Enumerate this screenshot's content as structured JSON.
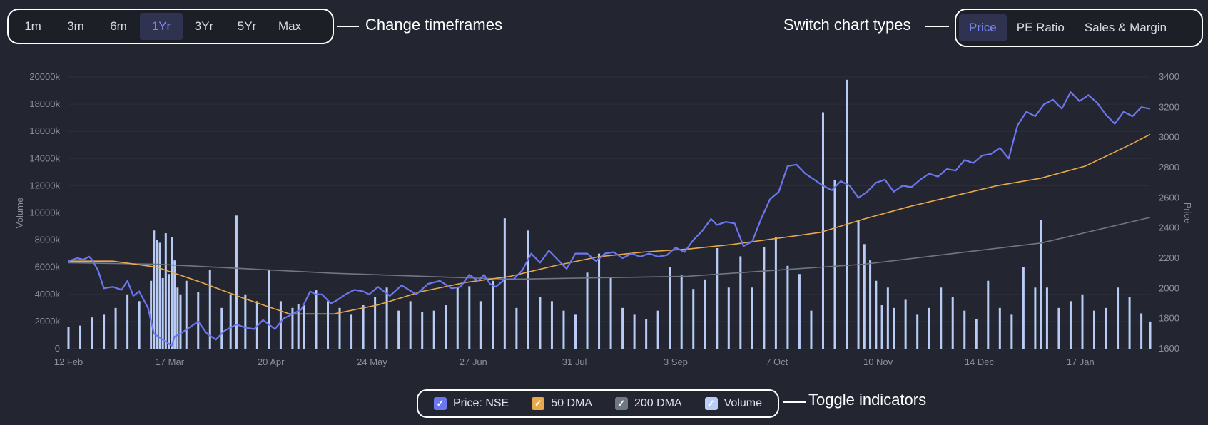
{
  "timeframes": {
    "buttons": [
      "1m",
      "3m",
      "6m",
      "1Yr",
      "3Yr",
      "5Yr",
      "Max"
    ],
    "active": "1Yr",
    "callout": "Change timeframes"
  },
  "chart_types": {
    "buttons": [
      "Price",
      "PE Ratio",
      "Sales & Margin"
    ],
    "active": "Price",
    "callout": "Switch chart types"
  },
  "legend": {
    "callout": "Toggle indicators",
    "items": [
      {
        "label": "Price: NSE",
        "color": "#6c76ee",
        "checked": true
      },
      {
        "label": "50 DMA",
        "color": "#e8a94a",
        "checked": true
      },
      {
        "label": "200 DMA",
        "color": "#6f7684",
        "checked": true
      },
      {
        "label": "Volume",
        "color": "#b8ccf6",
        "checked": true
      }
    ]
  },
  "chart_data": {
    "type": "line",
    "x_tick_labels": [
      "12 Feb",
      "17 Mar",
      "20 Apr",
      "24 May",
      "27 Jun",
      "31 Jul",
      "3 Sep",
      "7 Oct",
      "10 Nov",
      "14 Dec",
      "17 Jan"
    ],
    "y_left": {
      "label": "Volume",
      "ticks": [
        "0",
        "2000k",
        "4000k",
        "6000k",
        "8000k",
        "10000k",
        "12000k",
        "14000k",
        "16000k",
        "18000k",
        "20000k"
      ],
      "range": [
        0,
        20000
      ]
    },
    "y_right": {
      "label": "Price",
      "ticks": [
        "1600",
        "1800",
        "2000",
        "2200",
        "2400",
        "2600",
        "2800",
        "3000",
        "3200",
        "3400"
      ],
      "range": [
        1600,
        3400
      ]
    },
    "grid": true,
    "series": [
      {
        "name": "Price: NSE",
        "axis": "right",
        "color": "#6c76ee",
        "x": [
          0,
          3,
          5,
          7,
          8,
          10,
          12,
          15,
          18,
          20,
          22,
          24,
          27,
          29,
          32,
          35,
          36,
          38,
          41,
          44,
          47,
          50,
          53,
          55,
          57,
          60,
          63,
          66,
          70,
          73,
          76,
          79,
          82,
          84,
          86,
          89,
          91,
          94,
          97,
          100,
          102,
          105,
          109,
          113,
          118,
          122,
          126,
          130,
          133,
          136,
          139,
          141,
          143,
          145,
          148,
          151,
          154,
          157,
          160,
          163,
          166,
          169,
          172,
          176,
          179,
          182,
          185,
          188,
          191,
          194,
          197,
          200,
          203,
          206,
          209,
          212,
          215,
          218,
          220,
          223,
          226,
          229,
          232,
          235,
          238,
          241,
          244,
          247,
          250,
          253,
          256,
          259,
          262,
          265,
          268,
          271,
          274,
          277,
          280,
          283,
          286,
          289,
          292,
          295,
          298,
          301,
          304,
          307,
          310,
          313,
          316,
          319,
          322,
          325,
          328,
          331,
          334,
          337,
          340,
          343,
          346,
          349,
          352,
          355,
          358,
          361,
          364,
          367
        ],
        "y": [
          2180,
          2200,
          2190,
          2210,
          2190,
          2120,
          2000,
          2010,
          1990,
          2050,
          1950,
          1980,
          1870,
          1700,
          1660,
          1620,
          1680,
          1700,
          1740,
          1780,
          1700,
          1660,
          1720,
          1740,
          1760,
          1740,
          1730,
          1790,
          1730,
          1800,
          1830,
          1860,
          1980,
          1960,
          1960,
          1900,
          1920,
          1960,
          1990,
          1980,
          1960,
          2010,
          1950,
          2020,
          1960,
          2030,
          2050,
          2000,
          2010,
          2090,
          2050,
          2090,
          2030,
          2010,
          2060,
          2060,
          2120,
          2230,
          2170,
          2250,
          2190,
          2130,
          2230,
          2230,
          2180,
          2230,
          2240,
          2200,
          2230,
          2210,
          2230,
          2210,
          2220,
          2270,
          2240,
          2320,
          2380,
          2460,
          2420,
          2440,
          2430,
          2280,
          2310,
          2460,
          2590,
          2640,
          2810,
          2820,
          2760,
          2720,
          2680,
          2650,
          2710,
          2680,
          2600,
          2640,
          2700,
          2720,
          2640,
          2680,
          2670,
          2720,
          2760,
          2740,
          2790,
          2780,
          2850,
          2830,
          2880,
          2890,
          2930,
          2860,
          3080,
          3170,
          3140,
          3220,
          3250,
          3190,
          3300,
          3240,
          3280,
          3230,
          3150,
          3090,
          3170,
          3140,
          3200,
          3190
        ]
      },
      {
        "name": "50 DMA",
        "axis": "right",
        "color": "#e8a94a",
        "x": [
          0,
          15,
          30,
          45,
          60,
          75,
          90,
          105,
          120,
          135,
          150,
          165,
          180,
          195,
          210,
          225,
          240,
          255,
          270,
          285,
          300,
          315,
          330,
          345,
          360,
          367
        ],
        "y": [
          2180,
          2180,
          2140,
          2040,
          1930,
          1830,
          1830,
          1890,
          1980,
          2040,
          2080,
          2150,
          2210,
          2240,
          2260,
          2290,
          2330,
          2370,
          2460,
          2540,
          2610,
          2680,
          2730,
          2810,
          2950,
          3020
        ]
      },
      {
        "name": "200 DMA",
        "axis": "right",
        "color": "#6f7684",
        "x": [
          0,
          30,
          60,
          90,
          120,
          150,
          180,
          210,
          240,
          270,
          300,
          330,
          367
        ],
        "y": [
          2170,
          2160,
          2130,
          2100,
          2080,
          2060,
          2070,
          2080,
          2120,
          2160,
          2230,
          2300,
          2470
        ]
      },
      {
        "name": "Volume",
        "axis": "left",
        "type": "bar",
        "color": "#b8ccf6",
        "x": [
          0,
          4,
          8,
          12,
          16,
          20,
          24,
          28,
          29,
          30,
          31,
          32,
          33,
          34,
          35,
          36,
          37,
          38,
          40,
          44,
          48,
          52,
          55,
          57,
          60,
          64,
          68,
          72,
          76,
          78,
          80,
          84,
          88,
          92,
          96,
          100,
          104,
          108,
          112,
          116,
          120,
          124,
          128,
          132,
          136,
          140,
          144,
          148,
          152,
          156,
          160,
          164,
          168,
          172,
          176,
          180,
          184,
          188,
          192,
          196,
          200,
          204,
          208,
          212,
          216,
          220,
          224,
          228,
          232,
          236,
          240,
          244,
          248,
          252,
          256,
          260,
          264,
          268,
          270,
          272,
          274,
          276,
          278,
          280,
          284,
          288,
          292,
          296,
          300,
          304,
          308,
          312,
          316,
          320,
          324,
          328,
          330,
          332,
          336,
          340,
          344,
          348,
          352,
          356,
          360,
          364,
          367
        ],
        "y": [
          1600,
          1700,
          2300,
          2500,
          3000,
          4000,
          3500,
          5000,
          8700,
          8000,
          7800,
          5200,
          8500,
          5500,
          8200,
          6500,
          4500,
          4000,
          5000,
          4200,
          5800,
          3000,
          4000,
          9800,
          4000,
          3500,
          5800,
          3500,
          3000,
          3300,
          3200,
          4300,
          3500,
          3000,
          2500,
          3200,
          3800,
          4500,
          2800,
          3500,
          2700,
          2800,
          3200,
          4500,
          4600,
          3500,
          5000,
          9600,
          3000,
          8700,
          3800,
          3500,
          2800,
          2500,
          5600,
          7000,
          5200,
          3000,
          2500,
          2200,
          2800,
          6000,
          5400,
          4400,
          5100,
          7400,
          4500,
          6800,
          4500,
          7500,
          8200,
          6100,
          5500,
          2800,
          17400,
          12400,
          19800,
          9400,
          7700,
          6500,
          5000,
          3200,
          4500,
          3000,
          3600,
          2500,
          3000,
          4500,
          3800,
          2800,
          2200,
          5000,
          3000,
          2500,
          6000,
          4500,
          9500,
          4500,
          3000,
          3500,
          4000,
          2800,
          3000,
          4500,
          3800,
          2600,
          2000
        ]
      }
    ]
  }
}
